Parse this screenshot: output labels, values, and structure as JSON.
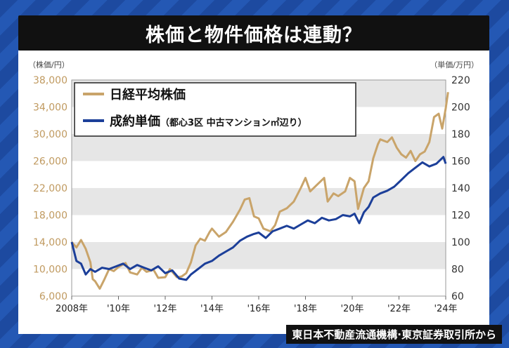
{
  "title": "株価と物件価格は連動？",
  "source": "東日本不動産流通機構·東京証券取引所から",
  "colors": {
    "nikkei": "#c9a46a",
    "price": "#1c3f99",
    "band": "#e6e6e6"
  },
  "chart_data": {
    "type": "line",
    "y_left_unit": "（株価/円）",
    "y_right_unit": "（単価/万円）",
    "y_left_ticks": [
      "6,000",
      "10,000",
      "14,000",
      "18,000",
      "22,000",
      "26,000",
      "30,000",
      "34,000",
      "38,000"
    ],
    "y_right_ticks": [
      "60",
      "80",
      "100",
      "120",
      "140",
      "160",
      "180",
      "200",
      "220"
    ],
    "x_ticks": [
      "2008年",
      "'10年",
      "'12年",
      "'14年",
      "'16年",
      "'18年",
      "'20年",
      "'22年",
      "'24年"
    ],
    "x_range": [
      2008,
      2024
    ],
    "y_left_range": [
      6000,
      38000
    ],
    "y_right_range": [
      60,
      220
    ],
    "grid": "horizontal bands",
    "legend_position": "top-left",
    "series": [
      {
        "name": "日経平均株価",
        "axis": "left",
        "points": [
          [
            2008.0,
            14000
          ],
          [
            2008.2,
            13200
          ],
          [
            2008.4,
            14300
          ],
          [
            2008.6,
            13000
          ],
          [
            2008.8,
            11000
          ],
          [
            2008.9,
            8500
          ],
          [
            2009.0,
            8200
          ],
          [
            2009.2,
            7100
          ],
          [
            2009.4,
            8500
          ],
          [
            2009.6,
            10000
          ],
          [
            2009.8,
            9700
          ],
          [
            2010.0,
            10300
          ],
          [
            2010.3,
            10900
          ],
          [
            2010.5,
            9500
          ],
          [
            2010.8,
            9200
          ],
          [
            2011.0,
            10200
          ],
          [
            2011.2,
            9600
          ],
          [
            2011.5,
            9900
          ],
          [
            2011.7,
            8700
          ],
          [
            2012.0,
            8800
          ],
          [
            2012.2,
            10000
          ],
          [
            2012.5,
            8800
          ],
          [
            2012.7,
            8900
          ],
          [
            2012.9,
            9400
          ],
          [
            2013.1,
            11000
          ],
          [
            2013.3,
            13500
          ],
          [
            2013.5,
            14500
          ],
          [
            2013.7,
            14200
          ],
          [
            2013.9,
            15500
          ],
          [
            2014.0,
            16000
          ],
          [
            2014.3,
            14800
          ],
          [
            2014.6,
            15500
          ],
          [
            2014.9,
            17000
          ],
          [
            2015.2,
            18800
          ],
          [
            2015.4,
            20300
          ],
          [
            2015.6,
            20500
          ],
          [
            2015.8,
            17800
          ],
          [
            2016.0,
            17500
          ],
          [
            2016.2,
            16000
          ],
          [
            2016.5,
            15600
          ],
          [
            2016.7,
            16500
          ],
          [
            2016.9,
            18500
          ],
          [
            2017.2,
            19000
          ],
          [
            2017.5,
            20000
          ],
          [
            2017.8,
            22000
          ],
          [
            2018.0,
            23500
          ],
          [
            2018.2,
            21500
          ],
          [
            2018.5,
            22500
          ],
          [
            2018.8,
            23500
          ],
          [
            2018.95,
            20000
          ],
          [
            2019.2,
            21200
          ],
          [
            2019.4,
            20800
          ],
          [
            2019.7,
            21500
          ],
          [
            2019.9,
            23500
          ],
          [
            2020.1,
            23000
          ],
          [
            2020.25,
            18900
          ],
          [
            2020.5,
            22000
          ],
          [
            2020.7,
            23000
          ],
          [
            2020.9,
            26400
          ],
          [
            2021.1,
            28500
          ],
          [
            2021.2,
            29200
          ],
          [
            2021.5,
            28800
          ],
          [
            2021.7,
            29500
          ],
          [
            2021.9,
            28000
          ],
          [
            2022.1,
            27000
          ],
          [
            2022.3,
            26500
          ],
          [
            2022.5,
            27500
          ],
          [
            2022.7,
            26000
          ],
          [
            2022.9,
            27000
          ],
          [
            2023.1,
            27400
          ],
          [
            2023.3,
            28800
          ],
          [
            2023.5,
            32500
          ],
          [
            2023.7,
            33000
          ],
          [
            2023.85,
            30800
          ],
          [
            2024.0,
            33800
          ],
          [
            2024.1,
            36200
          ]
        ]
      },
      {
        "name": "成約単価",
        "axis": "right",
        "points": [
          [
            2008.0,
            100
          ],
          [
            2008.2,
            86
          ],
          [
            2008.4,
            84
          ],
          [
            2008.6,
            76
          ],
          [
            2008.8,
            80
          ],
          [
            2009.0,
            78
          ],
          [
            2009.3,
            81
          ],
          [
            2009.6,
            80
          ],
          [
            2009.9,
            82
          ],
          [
            2010.2,
            84
          ],
          [
            2010.5,
            80
          ],
          [
            2010.8,
            83
          ],
          [
            2011.1,
            81
          ],
          [
            2011.4,
            79
          ],
          [
            2011.7,
            82
          ],
          [
            2012.0,
            77
          ],
          [
            2012.3,
            79
          ],
          [
            2012.6,
            73
          ],
          [
            2012.9,
            72
          ],
          [
            2013.1,
            76
          ],
          [
            2013.4,
            80
          ],
          [
            2013.7,
            84
          ],
          [
            2014.0,
            86
          ],
          [
            2014.3,
            90
          ],
          [
            2014.6,
            93
          ],
          [
            2014.9,
            96
          ],
          [
            2015.2,
            101
          ],
          [
            2015.5,
            104
          ],
          [
            2015.8,
            106
          ],
          [
            2016.0,
            107
          ],
          [
            2016.3,
            103
          ],
          [
            2016.6,
            108
          ],
          [
            2016.9,
            110
          ],
          [
            2017.2,
            112
          ],
          [
            2017.5,
            110
          ],
          [
            2017.8,
            113
          ],
          [
            2018.1,
            116
          ],
          [
            2018.4,
            114
          ],
          [
            2018.7,
            118
          ],
          [
            2019.0,
            116
          ],
          [
            2019.3,
            117
          ],
          [
            2019.6,
            120
          ],
          [
            2019.9,
            119
          ],
          [
            2020.1,
            121
          ],
          [
            2020.3,
            114
          ],
          [
            2020.5,
            122
          ],
          [
            2020.7,
            126
          ],
          [
            2020.9,
            133
          ],
          [
            2021.2,
            136
          ],
          [
            2021.5,
            138
          ],
          [
            2021.8,
            141
          ],
          [
            2022.1,
            146
          ],
          [
            2022.4,
            151
          ],
          [
            2022.7,
            155
          ],
          [
            2023.0,
            159
          ],
          [
            2023.3,
            156
          ],
          [
            2023.6,
            158
          ],
          [
            2023.9,
            163
          ],
          [
            2024.0,
            158
          ]
        ]
      }
    ],
    "legend": {
      "nikkei": "日経平均株価",
      "price_main": "成約単価",
      "price_note": "（都心3区 中古マンション㎡辺り）"
    }
  }
}
